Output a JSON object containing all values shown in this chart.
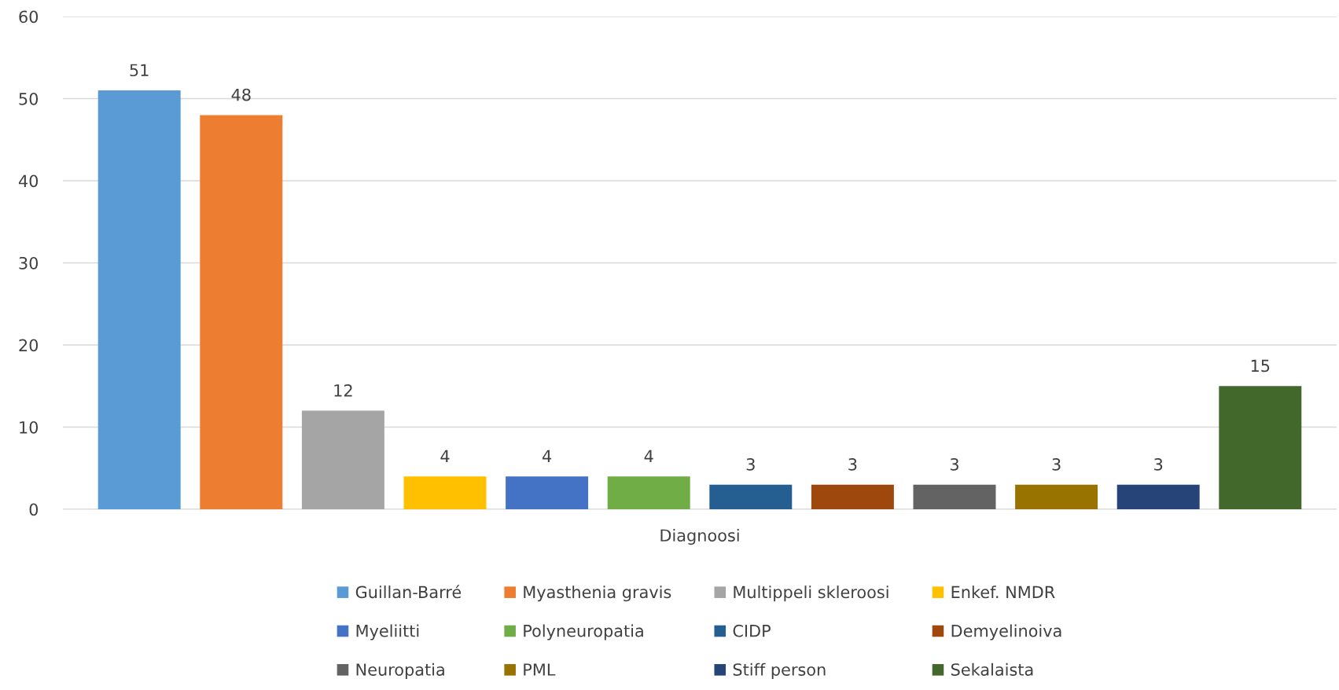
{
  "chart_data": {
    "type": "bar",
    "categories": [
      "Diagnoosi"
    ],
    "series": [
      {
        "name": "Guillan-Barré",
        "color": "#5b9bd5",
        "values": [
          51
        ]
      },
      {
        "name": "Myasthenia gravis",
        "color": "#ed7d31",
        "values": [
          48
        ]
      },
      {
        "name": "Multippeli skleroosi",
        "color": "#a5a5a5",
        "values": [
          12
        ]
      },
      {
        "name": "Enkef. NMDR",
        "color": "#ffc000",
        "values": [
          4
        ]
      },
      {
        "name": "Myeliitti",
        "color": "#4472c4",
        "values": [
          4
        ]
      },
      {
        "name": "Polyneuropatia",
        "color": "#70ad47",
        "values": [
          4
        ]
      },
      {
        "name": "CIDP",
        "color": "#255e91",
        "values": [
          3
        ]
      },
      {
        "name": "Demyelinoiva",
        "color": "#9e480e",
        "values": [
          3
        ]
      },
      {
        "name": "Neuropatia",
        "color": "#636363",
        "values": [
          3
        ]
      },
      {
        "name": "PML",
        "color": "#997300",
        "values": [
          3
        ]
      },
      {
        "name": "Stiff person",
        "color": "#264478",
        "values": [
          3
        ]
      },
      {
        "name": "Sekalaista",
        "color": "#43682b",
        "values": [
          15
        ]
      }
    ],
    "ylim": [
      0,
      60
    ],
    "yticks": [
      0,
      10,
      20,
      30,
      40,
      50,
      60
    ],
    "grid": "y",
    "legend": "bottom",
    "data_labels": true
  }
}
